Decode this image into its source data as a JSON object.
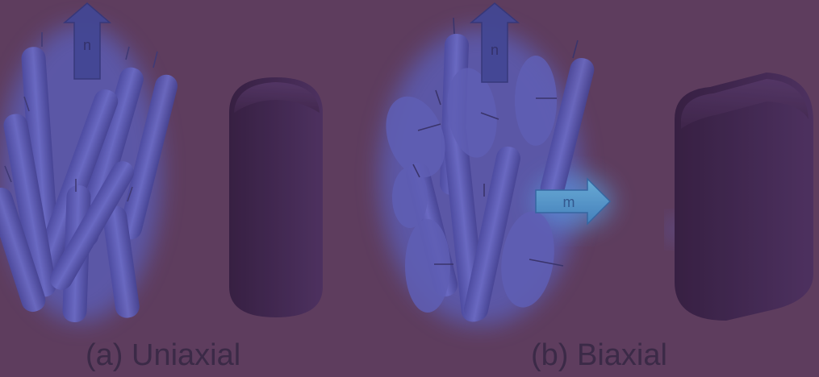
{
  "panels": [
    {
      "caption": "(a) Uniaxial",
      "director_label": "n"
    },
    {
      "caption": "(b) Biaxial",
      "director_label": "n",
      "secondary_label": "m"
    }
  ],
  "colors": {
    "background": "#5e3d5e",
    "caption": "#3b2a47",
    "rod": "#5a5fc0",
    "glow": "#5a78ff",
    "shape": "#3a2248",
    "arrow_n": "#3e4aa0",
    "arrow_m": "#4aa0d8"
  }
}
